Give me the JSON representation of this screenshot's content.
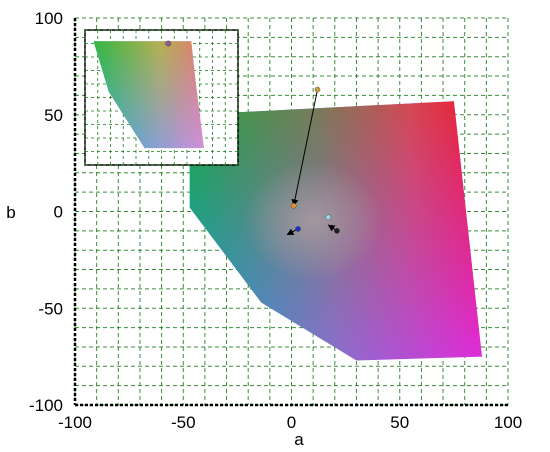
{
  "chart_data": {
    "type": "scatter",
    "title": "",
    "xlabel": "a",
    "ylabel": "b",
    "xlim": [
      -100,
      100
    ],
    "ylim": [
      -100,
      100
    ],
    "x_ticks": [
      -100,
      -50,
      0,
      50,
      100
    ],
    "y_ticks": [
      100,
      50,
      0,
      -50,
      -100
    ],
    "grid": true,
    "grid_style": "dashed",
    "grid_color": "#1a7a1a",
    "gamut_polygon": [
      [
        -47,
        50
      ],
      [
        75,
        57
      ],
      [
        88,
        -75
      ],
      [
        30,
        -77
      ],
      [
        -14,
        -47
      ],
      [
        -47,
        2
      ]
    ],
    "points": [
      {
        "a": 12,
        "b": 63,
        "color": "#c8a040"
      },
      {
        "a": 1,
        "b": 3,
        "color": "#e09030"
      },
      {
        "a": 3,
        "b": -9,
        "color": "#2030c0"
      },
      {
        "a": 17,
        "b": -3,
        "color": "#9ad8f0"
      },
      {
        "a": 21,
        "b": -10,
        "color": "#202020"
      }
    ],
    "arrows": [
      {
        "from": [
          12,
          63
        ],
        "to": [
          1,
          3
        ]
      },
      {
        "from": [
          3,
          -9
        ],
        "to": [
          -2,
          -12
        ]
      },
      {
        "from": [
          21,
          -10
        ],
        "to": [
          17,
          -7
        ]
      }
    ],
    "inset": {
      "gamut_polygon": [
        [
          -100,
          80
        ],
        [
          15,
          80
        ],
        [
          20,
          45
        ],
        [
          30,
          -15
        ],
        [
          -40,
          -15
        ],
        [
          -82,
          35
        ]
      ],
      "point": {
        "a": -12,
        "b": 78,
        "color": "#906090"
      }
    }
  }
}
